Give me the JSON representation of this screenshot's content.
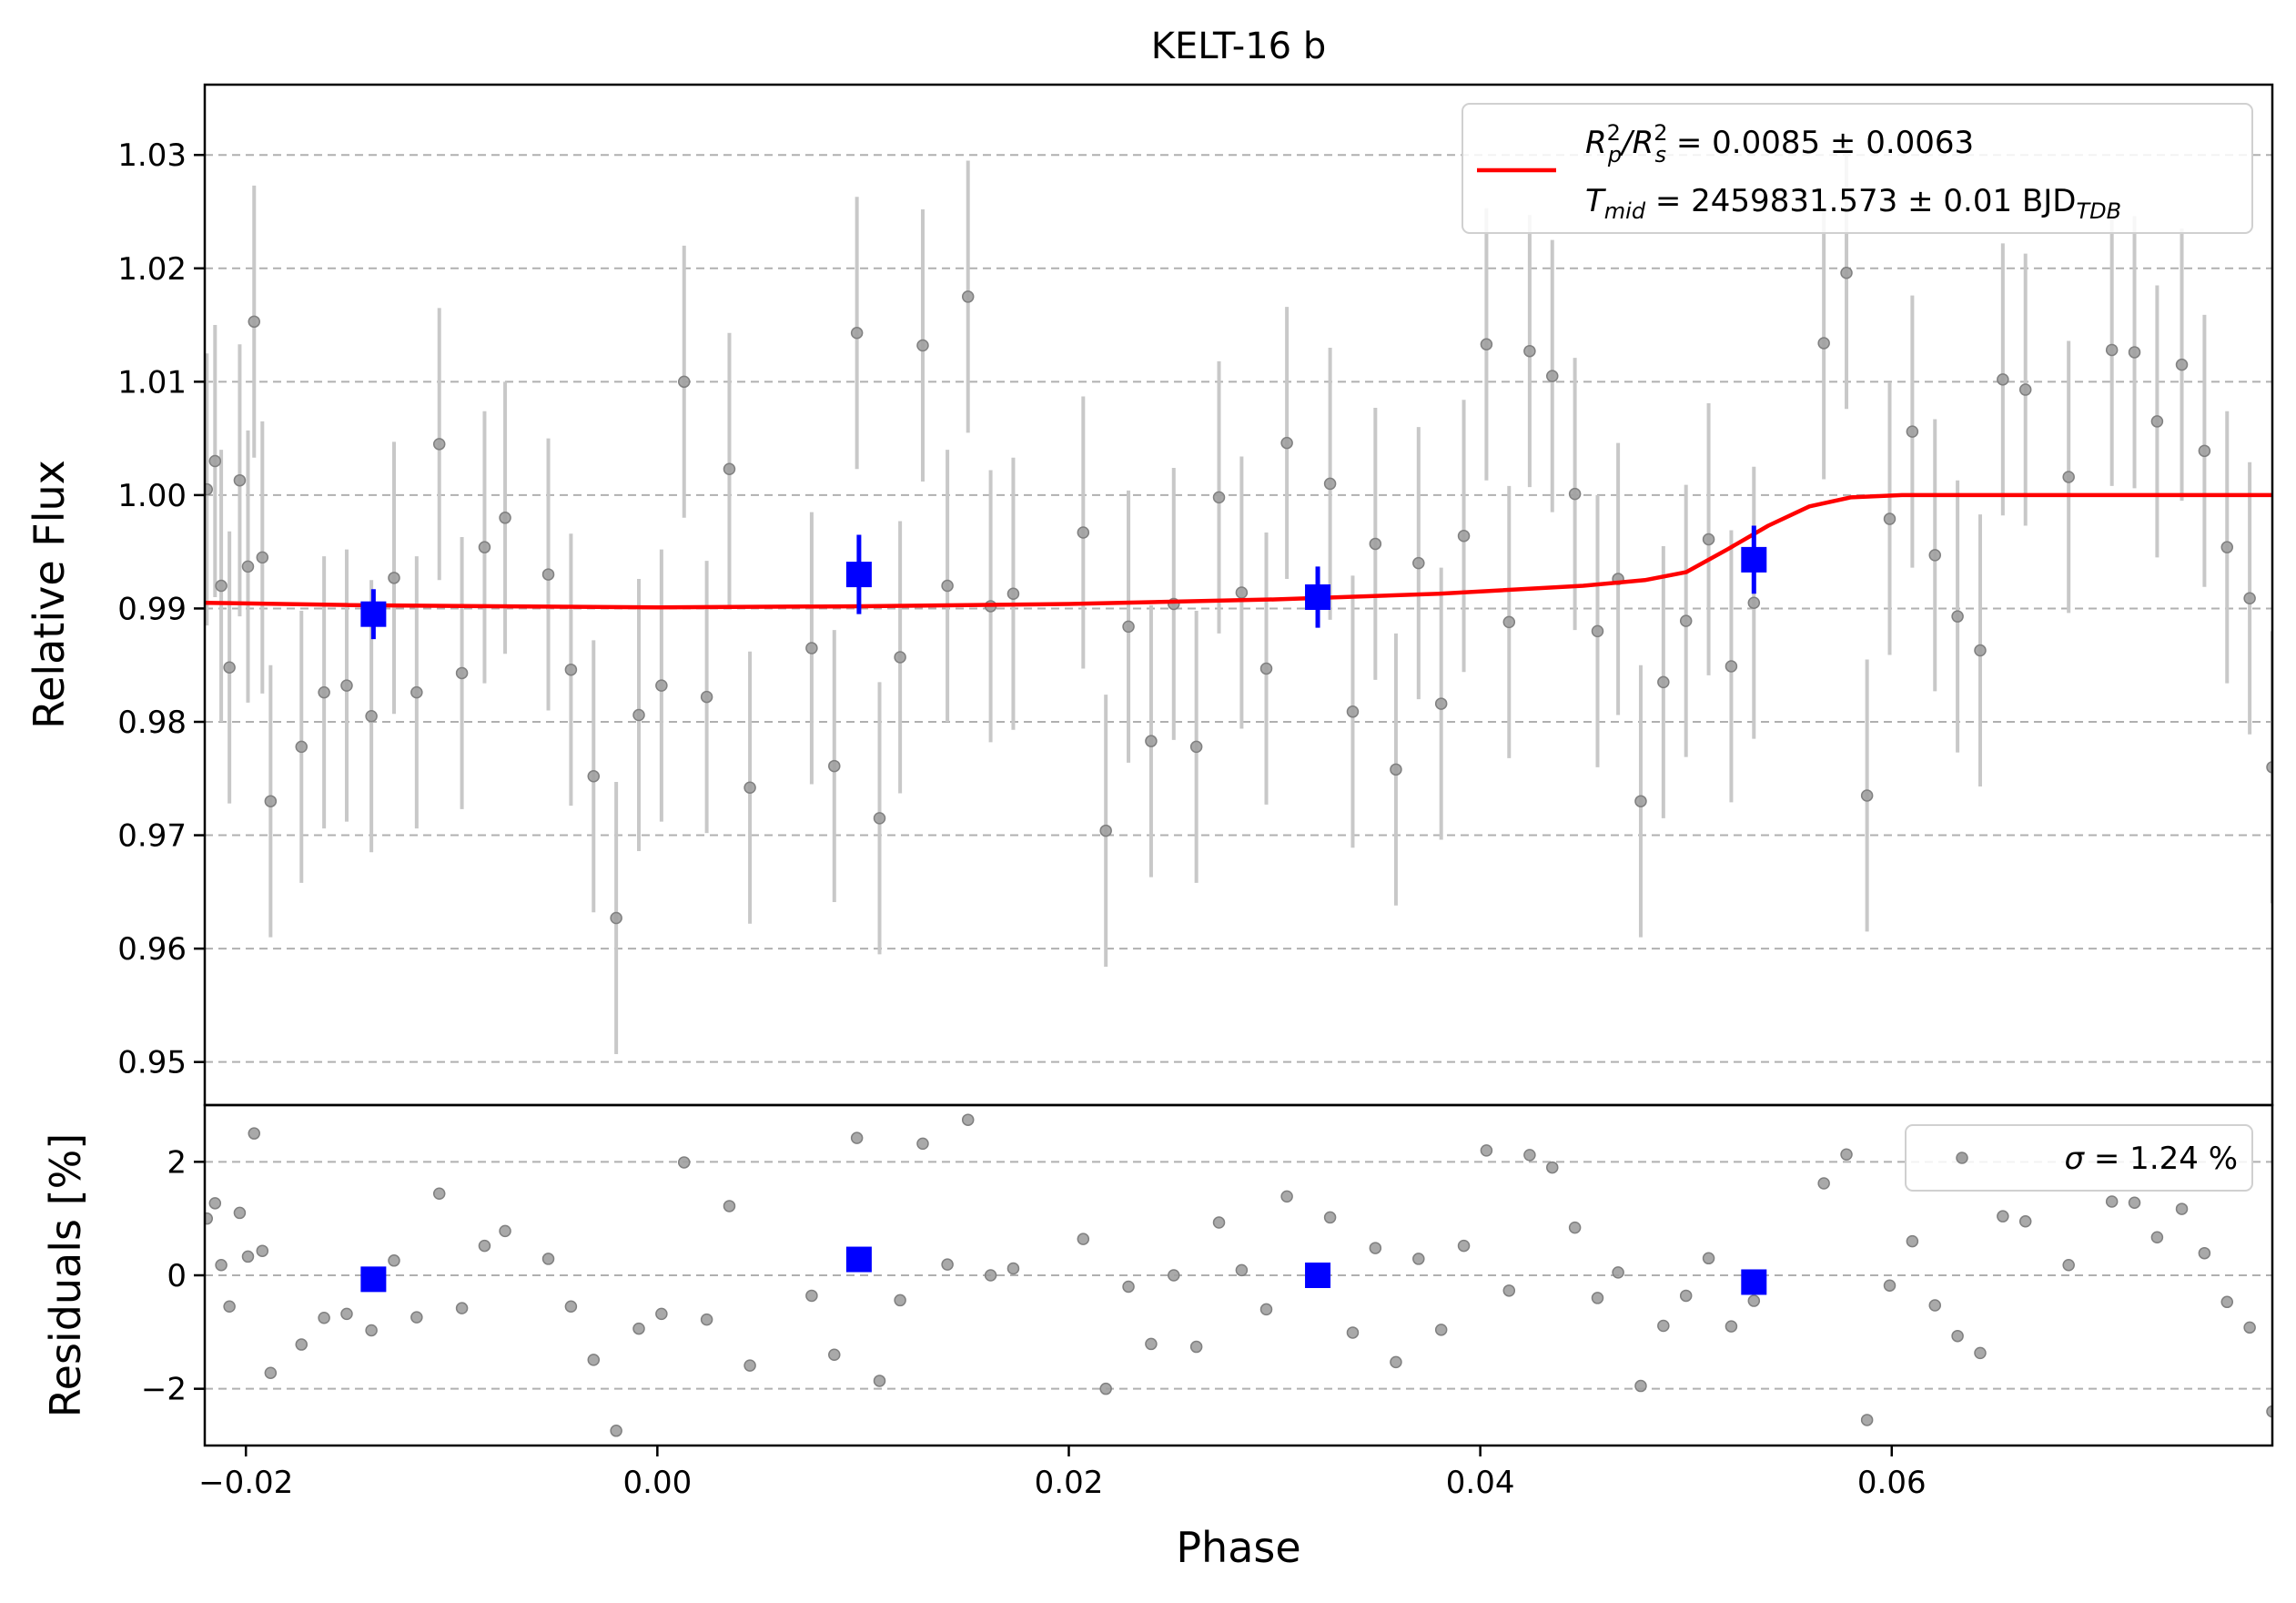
{
  "chart_data": [
    {
      "type": "scatter",
      "panel": "flux",
      "title": "KELT-16 b",
      "ylabel": "Relative Flux",
      "xlim": [
        -0.022,
        0.0785
      ],
      "ylim": [
        0.9462,
        1.0362
      ],
      "yticks": [
        0.95,
        0.96,
        0.97,
        0.98,
        0.99,
        1.0,
        1.01,
        1.02,
        1.03
      ],
      "ytick_labels": [
        "0.95",
        "0.96",
        "0.97",
        "0.98",
        "0.99",
        "1.00",
        "1.01",
        "1.02",
        "1.03"
      ],
      "grid": "horizontal dashed",
      "legend_position": "top-right",
      "legend": {
        "line1_pre": "R",
        "line1_sub1": "p",
        "line1_sup1": "2",
        "line1_mid": "/R",
        "line1_sub2": "s",
        "line1_sup2": "2",
        "line1_post": " = 0.0085 ± 0.0063",
        "line2_pre": "T",
        "line2_sub": "mid",
        "line2_post": " = 2459831.573 ± 0.01 BJD",
        "line2_sub2": "TDB"
      },
      "colors": {
        "data": "#808080",
        "errorbar": "#c8c8c8",
        "binned": "#0000ff",
        "model": "#ff0000"
      },
      "data_points": [
        [
          -0.0219,
          1.0005,
          0.012
        ],
        [
          -0.0215,
          1.003,
          0.012
        ],
        [
          -0.0212,
          0.992,
          0.012
        ],
        [
          -0.0208,
          0.9848,
          0.012
        ],
        [
          -0.0203,
          1.0013,
          0.012
        ],
        [
          -0.0199,
          0.9937,
          0.012
        ],
        [
          -0.0196,
          1.0153,
          0.012
        ],
        [
          -0.0192,
          0.9945,
          0.012
        ],
        [
          -0.0188,
          0.973,
          0.012
        ],
        [
          -0.0173,
          0.9778,
          0.012
        ],
        [
          -0.0162,
          0.9826,
          0.012
        ],
        [
          -0.0151,
          0.9832,
          0.012
        ],
        [
          -0.0139,
          0.9805,
          0.012
        ],
        [
          -0.0128,
          0.9927,
          0.012
        ],
        [
          -0.0117,
          0.9826,
          0.012
        ],
        [
          -0.0106,
          1.0045,
          0.012
        ],
        [
          -0.0095,
          0.9843,
          0.012
        ],
        [
          -0.0084,
          0.9954,
          0.012
        ],
        [
          -0.0074,
          0.998,
          0.012
        ],
        [
          -0.0053,
          0.993,
          0.012
        ],
        [
          -0.0042,
          0.9846,
          0.012
        ],
        [
          -0.0031,
          0.9752,
          0.012
        ],
        [
          -0.002,
          0.9627,
          0.012
        ],
        [
          -0.0009,
          0.9806,
          0.012
        ],
        [
          0.0002,
          0.9832,
          0.012
        ],
        [
          0.0013,
          1.01,
          0.012
        ],
        [
          0.0024,
          0.9822,
          0.012
        ],
        [
          0.0035,
          1.0023,
          0.012
        ],
        [
          0.0045,
          0.9742,
          0.012
        ],
        [
          0.0075,
          0.9865,
          0.012
        ],
        [
          0.0086,
          0.9761,
          0.012
        ],
        [
          0.0097,
          1.0143,
          0.012
        ],
        [
          0.0108,
          0.9715,
          0.012
        ],
        [
          0.0118,
          0.9857,
          0.012
        ],
        [
          0.0129,
          1.0132,
          0.012
        ],
        [
          0.0141,
          0.992,
          0.012
        ],
        [
          0.0151,
          1.0175,
          0.012
        ],
        [
          0.0162,
          0.9902,
          0.012
        ],
        [
          0.0173,
          0.9913,
          0.012
        ],
        [
          0.0207,
          0.9967,
          0.012
        ],
        [
          0.0218,
          0.9704,
          0.012
        ],
        [
          0.0229,
          0.9884,
          0.012
        ],
        [
          0.024,
          0.9783,
          0.012
        ],
        [
          0.0251,
          0.9904,
          0.012
        ],
        [
          0.0262,
          0.9778,
          0.012
        ],
        [
          0.0273,
          0.9998,
          0.012
        ],
        [
          0.0284,
          0.9914,
          0.012
        ],
        [
          0.0296,
          0.9847,
          0.012
        ],
        [
          0.0306,
          1.0046,
          0.012
        ],
        [
          0.0327,
          1.001,
          0.012
        ],
        [
          0.0338,
          0.9809,
          0.012
        ],
        [
          0.0349,
          0.9957,
          0.012
        ],
        [
          0.0359,
          0.9758,
          0.012
        ],
        [
          0.037,
          0.994,
          0.012
        ],
        [
          0.0381,
          0.9816,
          0.012
        ],
        [
          0.0392,
          0.9964,
          0.012
        ],
        [
          0.0403,
          1.0133,
          0.012
        ],
        [
          0.0414,
          0.9888,
          0.012
        ],
        [
          0.0424,
          1.0127,
          0.012
        ],
        [
          0.0435,
          1.0105,
          0.012
        ],
        [
          0.0446,
          1.0001,
          0.012
        ],
        [
          0.0457,
          0.988,
          0.012
        ],
        [
          0.0467,
          0.9926,
          0.012
        ],
        [
          0.0478,
          0.973,
          0.012
        ],
        [
          0.0489,
          0.9835,
          0.012
        ],
        [
          0.05,
          0.9889,
          0.012
        ],
        [
          0.0511,
          0.9961,
          0.012
        ],
        [
          0.0522,
          0.9849,
          0.012
        ],
        [
          0.0533,
          0.9905,
          0.012
        ],
        [
          0.0567,
          1.0134,
          0.012
        ],
        [
          0.0578,
          1.0196,
          0.012
        ],
        [
          0.0588,
          0.9735,
          0.012
        ],
        [
          0.0599,
          0.9979,
          0.012
        ],
        [
          0.061,
          1.0056,
          0.012
        ],
        [
          0.0621,
          0.9947,
          0.012
        ],
        [
          0.0632,
          0.9893,
          0.012
        ],
        [
          0.0643,
          0.9863,
          0.012
        ],
        [
          0.0654,
          1.0102,
          0.012
        ],
        [
          0.0665,
          1.0093,
          0.012
        ],
        [
          0.0686,
          1.0016,
          0.012
        ],
        [
          0.0707,
          1.0128,
          0.012
        ],
        [
          0.0718,
          1.0126,
          0.012
        ],
        [
          0.0729,
          1.0065,
          0.012
        ],
        [
          0.0741,
          1.0115,
          0.012
        ],
        [
          0.0752,
          1.0039,
          0.012
        ],
        [
          0.0763,
          0.9954,
          0.012
        ],
        [
          0.0774,
          0.9909,
          0.012
        ],
        [
          0.0785,
          0.976,
          0.012
        ]
      ],
      "binned_points": [
        [
          -0.0138,
          0.9895,
          0.0022
        ],
        [
          0.0098,
          0.993,
          0.0035
        ],
        [
          0.0321,
          0.991,
          0.0027
        ],
        [
          0.0533,
          0.9943,
          0.003
        ]
      ],
      "model": [
        [
          -0.022,
          0.9905
        ],
        [
          -0.015,
          0.9903
        ],
        [
          -0.008,
          0.9902
        ],
        [
          0.0,
          0.9901
        ],
        [
          0.01,
          0.9902
        ],
        [
          0.02,
          0.9904
        ],
        [
          0.03,
          0.9908
        ],
        [
          0.038,
          0.9913
        ],
        [
          0.045,
          0.992
        ],
        [
          0.048,
          0.9925
        ],
        [
          0.05,
          0.9932
        ],
        [
          0.052,
          0.9952
        ],
        [
          0.054,
          0.9973
        ],
        [
          0.056,
          0.999
        ],
        [
          0.058,
          0.9998
        ],
        [
          0.0605,
          1.0
        ],
        [
          0.0785,
          1.0
        ]
      ]
    },
    {
      "type": "scatter",
      "panel": "residuals",
      "ylabel": "Residuals [%]",
      "xlabel": "Phase",
      "xlim": [
        -0.022,
        0.0785
      ],
      "ylim": [
        -3.0,
        3.0
      ],
      "yticks": [
        -2,
        0,
        2
      ],
      "ytick_labels": [
        "−2",
        "0",
        "2"
      ],
      "xticks": [
        -0.02,
        0.0,
        0.02,
        0.04,
        0.06
      ],
      "xtick_labels": [
        "−0.02",
        "0.00",
        "0.02",
        "0.04",
        "0.06"
      ],
      "legend_position": "top-right",
      "legend": {
        "sigma_symbol": "σ",
        "sigma_text": " = 1.24 %"
      },
      "residual_points": [
        [
          -0.0219,
          1.0
        ],
        [
          -0.0215,
          1.27
        ],
        [
          -0.0212,
          0.18
        ],
        [
          -0.0208,
          -0.55
        ],
        [
          -0.0203,
          1.1
        ],
        [
          -0.0199,
          0.33
        ],
        [
          -0.0196,
          2.5
        ],
        [
          -0.0192,
          0.43
        ],
        [
          -0.0188,
          -1.72
        ],
        [
          -0.0173,
          -1.22
        ],
        [
          -0.0162,
          -0.75
        ],
        [
          -0.0151,
          -0.68
        ],
        [
          -0.0139,
          -0.97
        ],
        [
          -0.0128,
          0.26
        ],
        [
          -0.0117,
          -0.74
        ],
        [
          -0.0106,
          1.44
        ],
        [
          -0.0095,
          -0.58
        ],
        [
          -0.0084,
          0.52
        ],
        [
          -0.0074,
          0.78
        ],
        [
          -0.0053,
          0.29
        ],
        [
          -0.0042,
          -0.55
        ],
        [
          -0.0031,
          -1.49
        ],
        [
          -0.002,
          -2.74
        ],
        [
          -0.0009,
          -0.94
        ],
        [
          0.0002,
          -0.68
        ],
        [
          0.0013,
          1.99
        ],
        [
          0.0024,
          -0.78
        ],
        [
          0.0035,
          1.22
        ],
        [
          0.0045,
          -1.59
        ],
        [
          0.0075,
          -0.36
        ],
        [
          0.0086,
          -1.4
        ],
        [
          0.0097,
          2.42
        ],
        [
          0.0108,
          -1.86
        ],
        [
          0.0118,
          -0.44
        ],
        [
          0.0129,
          2.32
        ],
        [
          0.0141,
          0.19
        ],
        [
          0.0151,
          2.74
        ],
        [
          0.0162,
          0.0
        ],
        [
          0.0173,
          0.12
        ],
        [
          0.0207,
          0.64
        ],
        [
          0.0218,
          -2.0
        ],
        [
          0.0229,
          -0.2
        ],
        [
          0.024,
          -1.21
        ],
        [
          0.0251,
          0.0
        ],
        [
          0.0262,
          -1.26
        ],
        [
          0.0273,
          0.93
        ],
        [
          0.0284,
          0.09
        ],
        [
          0.0296,
          -0.6
        ],
        [
          0.0306,
          1.39
        ],
        [
          0.0327,
          1.02
        ],
        [
          0.0338,
          -1.01
        ],
        [
          0.0349,
          0.48
        ],
        [
          0.0359,
          -1.53
        ],
        [
          0.037,
          0.29
        ],
        [
          0.0381,
          -0.96
        ],
        [
          0.0392,
          0.52
        ],
        [
          0.0403,
          2.2
        ],
        [
          0.0414,
          -0.27
        ],
        [
          0.0424,
          2.12
        ],
        [
          0.0435,
          1.9
        ],
        [
          0.0446,
          0.84
        ],
        [
          0.0457,
          -0.4
        ],
        [
          0.0467,
          0.05
        ],
        [
          0.0478,
          -1.95
        ],
        [
          0.0489,
          -0.89
        ],
        [
          0.05,
          -0.36
        ],
        [
          0.0511,
          0.3
        ],
        [
          0.0522,
          -0.9
        ],
        [
          0.0533,
          -0.45
        ],
        [
          0.0567,
          1.62
        ],
        [
          0.0578,
          2.13
        ],
        [
          0.0588,
          -2.55
        ],
        [
          0.0599,
          -0.18
        ],
        [
          0.061,
          0.6
        ],
        [
          0.0621,
          -0.53
        ],
        [
          0.0632,
          -1.07
        ],
        [
          0.0643,
          -1.37
        ],
        [
          0.0654,
          1.04
        ],
        [
          0.0665,
          0.95
        ],
        [
          0.0686,
          0.18
        ],
        [
          0.0707,
          1.3
        ],
        [
          0.0718,
          1.28
        ],
        [
          0.0729,
          0.67
        ],
        [
          0.0741,
          1.17
        ],
        [
          0.0752,
          0.39
        ],
        [
          0.0763,
          -0.47
        ],
        [
          0.0774,
          -0.92
        ],
        [
          0.0785,
          -2.4
        ]
      ],
      "binned_points": [
        [
          -0.0138,
          -0.07
        ],
        [
          0.0098,
          0.28
        ],
        [
          0.0321,
          0.0
        ],
        [
          0.0533,
          -0.12
        ]
      ]
    }
  ]
}
